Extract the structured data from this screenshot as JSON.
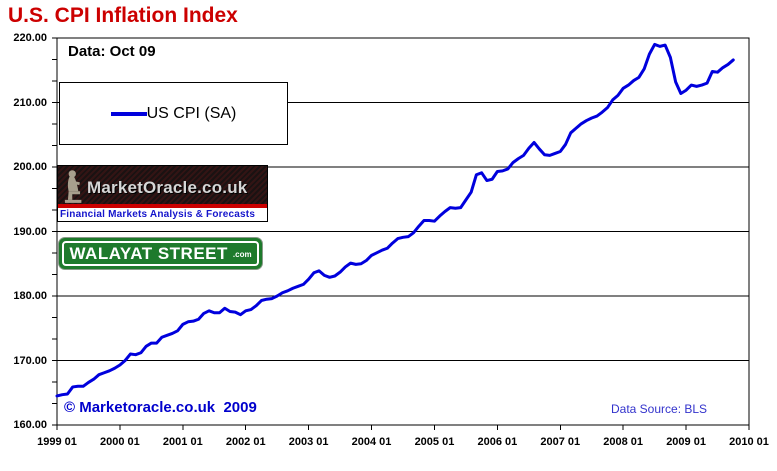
{
  "title": "U.S. CPI Inflation Index",
  "annotations": {
    "data_label": "Data: Oct 09",
    "copyright": "© Marketoracle.co.uk  2009",
    "data_source": "Data Source: BLS"
  },
  "legend": {
    "series_label": "US CPI (SA)"
  },
  "logos": {
    "market_oracle": {
      "wordmark": "MarketOracle.co.uk",
      "tagline": "Financial Markets Analysis & Forecasts",
      "statue_icon": "seated-reader-statue-icon"
    },
    "walayat_street": {
      "wordmark": "WALAYAT STREET",
      "suffix": ".com"
    }
  },
  "colors": {
    "title": "#CC0000",
    "line": "#0000DD",
    "grid": "#000000",
    "axis": "#000000",
    "copyright": "#0000CC",
    "data_source": "#3333CC",
    "mo_tagline": "#1515CC",
    "mo_stripe": "#CC0000",
    "walayat_green": "#1E7A2C"
  },
  "chart_data": {
    "type": "line",
    "title": "U.S. CPI Inflation Index",
    "xlabel": "",
    "ylabel": "",
    "ylim": [
      160,
      220
    ],
    "y_tick_labels": [
      "220.00",
      "210.00",
      "200.00",
      "190.00",
      "180.00",
      "170.00",
      "160.00"
    ],
    "y_gridlines": [
      210,
      200,
      190,
      180,
      170
    ],
    "y_minor_per_major": 3,
    "x_tick_labels": [
      "1999 01",
      "2000 01",
      "2001 01",
      "2002 01",
      "2003 01",
      "2004 01",
      "2005 01",
      "2006 01",
      "2007 01",
      "2008 01",
      "2009 01",
      "2010 01"
    ],
    "grid": "horizontal-major",
    "legend_position": "upper-left-box",
    "series": [
      {
        "name": "US CPI (SA)",
        "start": "1999-01",
        "end": "2009-10",
        "frequency": "monthly",
        "values": [
          164.5,
          164.7,
          164.8,
          165.9,
          166.0,
          166.0,
          166.6,
          167.1,
          167.8,
          168.1,
          168.4,
          168.8,
          169.3,
          170.0,
          171.0,
          170.9,
          171.2,
          172.2,
          172.7,
          172.7,
          173.6,
          173.9,
          174.2,
          174.6,
          175.6,
          176.0,
          176.1,
          176.4,
          177.3,
          177.7,
          177.4,
          177.4,
          178.1,
          177.6,
          177.5,
          177.1,
          177.7,
          177.9,
          178.5,
          179.3,
          179.5,
          179.6,
          180.0,
          180.5,
          180.8,
          181.2,
          181.5,
          181.8,
          182.6,
          183.6,
          183.9,
          183.2,
          182.9,
          183.1,
          183.7,
          184.5,
          185.1,
          184.9,
          185.0,
          185.5,
          186.3,
          186.7,
          187.1,
          187.4,
          188.2,
          188.9,
          189.1,
          189.2,
          189.8,
          190.8,
          191.7,
          191.7,
          191.6,
          192.4,
          193.1,
          193.7,
          193.6,
          193.7,
          194.9,
          196.1,
          198.8,
          199.1,
          197.9,
          198.1,
          199.3,
          199.4,
          199.7,
          200.7,
          201.3,
          201.8,
          202.9,
          203.8,
          202.8,
          201.9,
          201.8,
          202.1,
          202.4,
          203.5,
          205.3,
          206.0,
          206.7,
          207.2,
          207.6,
          207.9,
          208.5,
          209.2,
          210.4,
          211.1,
          212.2,
          212.7,
          213.4,
          213.9,
          215.2,
          217.5,
          219.0,
          218.7,
          218.9,
          217.0,
          213.2,
          211.4,
          211.9,
          212.7,
          212.5,
          212.7,
          213.0,
          214.8,
          214.7,
          215.4,
          215.9,
          216.6
        ]
      }
    ]
  }
}
